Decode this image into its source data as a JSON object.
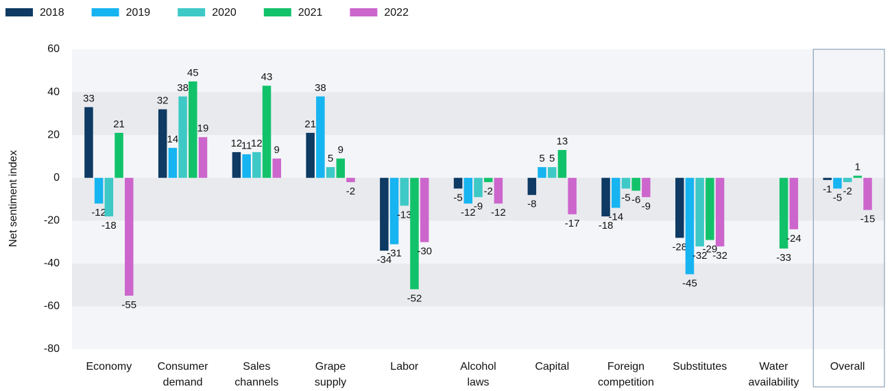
{
  "chart_data": {
    "type": "bar",
    "y_label": "Net sentiment index",
    "categories": [
      [
        "Economy"
      ],
      [
        "Consumer",
        "demand"
      ],
      [
        "Sales",
        "channels"
      ],
      [
        "Grape",
        "supply"
      ],
      [
        "Labor"
      ],
      [
        "Alcohol",
        "laws"
      ],
      [
        "Capital"
      ],
      [
        "Foreign",
        "competition"
      ],
      [
        "Substitutes"
      ],
      [
        "Water",
        "availability"
      ],
      [
        "Overall"
      ]
    ],
    "series": [
      {
        "name": "2018",
        "color": "#0e3a63",
        "values": [
          33,
          32,
          12,
          21,
          -34,
          -5,
          -8,
          -18,
          -28,
          null,
          -1
        ]
      },
      {
        "name": "2019",
        "color": "#16b4f0",
        "values": [
          -12,
          14,
          11,
          38,
          -31,
          -12,
          5,
          -14,
          -45,
          null,
          -5
        ]
      },
      {
        "name": "2020",
        "color": "#3ec9c6",
        "values": [
          -18,
          38,
          12,
          5,
          -13,
          -9,
          5,
          -5,
          -32,
          null,
          -2
        ]
      },
      {
        "name": "2021",
        "color": "#12c26b",
        "values": [
          21,
          45,
          43,
          9,
          -52,
          -2,
          13,
          -6,
          -29,
          -33,
          1
        ]
      },
      {
        "name": "2022",
        "color": "#cc66cc",
        "values": [
          -55,
          19,
          9,
          -2,
          -30,
          -12,
          -17,
          -9,
          -32,
          -24,
          -15
        ]
      }
    ],
    "ylim": [
      -80,
      60
    ],
    "yticks": [
      -80,
      -60,
      -40,
      -20,
      0,
      20,
      40,
      60
    ],
    "grid": true,
    "legend": "top-left"
  }
}
